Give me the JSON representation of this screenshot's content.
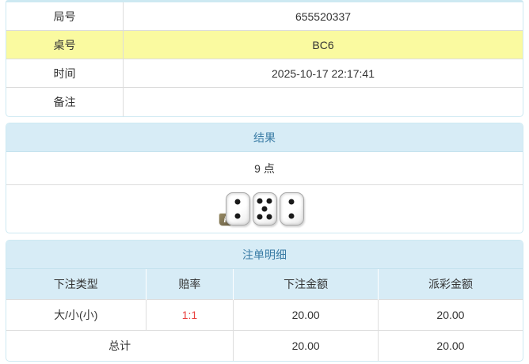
{
  "colors": {
    "accent_bg": "#d7ecf6",
    "accent_text": "#3a7ca5",
    "highlight_yellow": "#fafaa0",
    "odds_red": "#e8403e",
    "panel_border": "#cde9f2",
    "inner_border": "#dddddd",
    "text": "#333333",
    "info_badge_bg": "#7d7255"
  },
  "game_info": {
    "rows": [
      {
        "label": "局号",
        "value": "655520337"
      },
      {
        "label": "桌号",
        "value": "BC6"
      },
      {
        "label": "时间",
        "value": "2025-10-17 22:17:41"
      },
      {
        "label": "备注",
        "value": ""
      }
    ]
  },
  "result_panel": {
    "title": "结果",
    "points": "9 点",
    "dice": [
      2,
      5,
      2
    ],
    "info_icon_glyph": "i"
  },
  "bets_panel": {
    "title": "注单明细",
    "columns": [
      "下注类型",
      "赔率",
      "下注金额",
      "派彩金额"
    ],
    "rows": [
      {
        "type": "大/小(小)",
        "odds": "1:1",
        "bet": "20.00",
        "payout": "20.00"
      }
    ],
    "total": {
      "label": "总计",
      "bet": "20.00",
      "payout": "20.00"
    }
  }
}
